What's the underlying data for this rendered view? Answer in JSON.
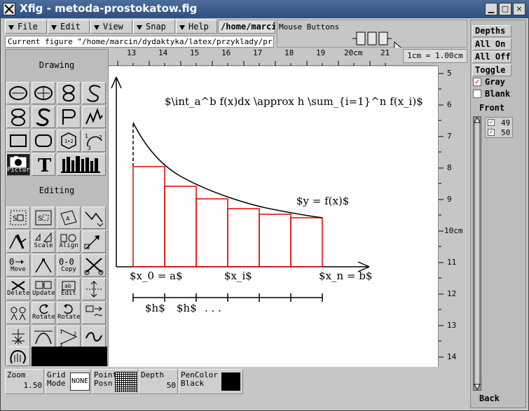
{
  "window": {
    "title": "Xfig - metoda-prostokatow.fig",
    "minimize_glyph": "▁",
    "maximize_glyph": "□",
    "close_glyph": "×"
  },
  "menu": {
    "file": "File",
    "edit": "Edit",
    "view": "View",
    "snap": "Snap",
    "help": "Help",
    "path": "/home/marcin/dydaktyka/latex/przyklady"
  },
  "mouse_buttons_label": "Mouse Buttons",
  "current_figure": "Current figure \"/home/marcin/dydaktyka/latex/przyklady/przyklad",
  "scale_label": "1cm = 1.00cm",
  "drawing": {
    "label": "Drawing",
    "picture_label": "Picture"
  },
  "editing": {
    "label": "Editing",
    "scale": "Scale",
    "align": "Align",
    "move": "Move",
    "copy": "Copy",
    "delete": "Delete",
    "update": "Update",
    "edit": "Edit",
    "rotate_ccw": "Rotate",
    "rotate_cw": "Rotate"
  },
  "ruler_top": [
    "13",
    "14",
    "15",
    "16",
    "17",
    "18",
    "19",
    "20cm",
    "21"
  ],
  "ruler_right": [
    "5",
    "6",
    "7",
    "8",
    "9",
    "10cm",
    "11",
    "12",
    "13",
    "14"
  ],
  "figure": {
    "formula": "$\\int_a^b f(x)dx \\approx h \\sum_{i=1}^n f(x_i)$",
    "curve_label": "$y = f(x)$",
    "x0": "$x_0 = a$",
    "xi": "$x_i$",
    "xn": "$x_n = b$",
    "h1": "$h$",
    "h2": "$h$",
    "dots": ". . ."
  },
  "indicators": {
    "zoom_label": "Zoom",
    "zoom_value": "1.50",
    "grid_label": "Grid",
    "grid_mode_label": "Mode",
    "grid_value": "NONE",
    "point_label": "Point",
    "posn_label": "Posn",
    "depth_label": "Depth",
    "depth_value": "50",
    "pencolor_label": "PenColor",
    "pencolor_value": "Black"
  },
  "depths": {
    "title": "Depths",
    "all_on": "All On",
    "all_off": "All Off",
    "toggle": "Toggle",
    "gray": "Gray",
    "blank": "Blank",
    "front": "Front",
    "back": "Back",
    "layers": [
      "49",
      "50"
    ]
  },
  "colors": {
    "title_bar": "#3b5b8c",
    "rect_stroke": "#e60000",
    "pen_color": "#000000"
  }
}
